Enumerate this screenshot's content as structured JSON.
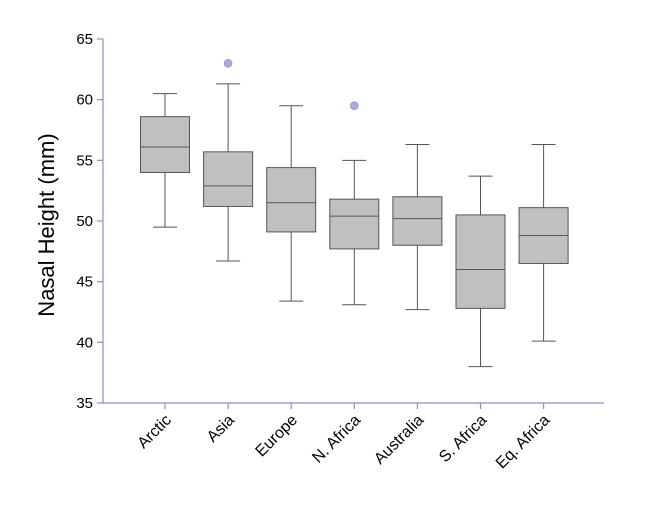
{
  "chart_data": {
    "type": "box",
    "title": "",
    "xlabel": "",
    "ylabel": "Nasal Height (mm)",
    "ylim": [
      35,
      65
    ],
    "yticks": [
      35,
      40,
      45,
      50,
      55,
      60,
      65
    ],
    "grid": false,
    "legend": "none",
    "colors": {
      "box_fill": "#c0c0c0",
      "box_stroke": "#555555",
      "axis": "#8a8fc4",
      "outlier": "#a9acd6"
    },
    "categories": [
      "Arctic",
      "Asia",
      "Europe",
      "N. Africa",
      "Australia",
      "S. Africa",
      "Eq. Africa"
    ],
    "boxes": [
      {
        "min": 49.5,
        "q1": 54.0,
        "median": 56.1,
        "q3": 58.6,
        "max": 60.5,
        "outliers": []
      },
      {
        "min": 46.7,
        "q1": 51.2,
        "median": 52.9,
        "q3": 55.7,
        "max": 61.3,
        "outliers": [
          63.0
        ]
      },
      {
        "min": 43.4,
        "q1": 49.1,
        "median": 51.5,
        "q3": 54.4,
        "max": 59.5,
        "outliers": []
      },
      {
        "min": 43.1,
        "q1": 47.7,
        "median": 50.4,
        "q3": 51.8,
        "max": 55.0,
        "outliers": [
          59.5
        ]
      },
      {
        "min": 42.7,
        "q1": 48.0,
        "median": 50.2,
        "q3": 52.0,
        "max": 56.3,
        "outliers": []
      },
      {
        "min": 38.0,
        "q1": 42.8,
        "median": 46.0,
        "q3": 50.5,
        "max": 53.7,
        "outliers": []
      },
      {
        "min": 40.1,
        "q1": 46.5,
        "median": 48.8,
        "q3": 51.1,
        "max": 56.3,
        "outliers": []
      }
    ]
  }
}
